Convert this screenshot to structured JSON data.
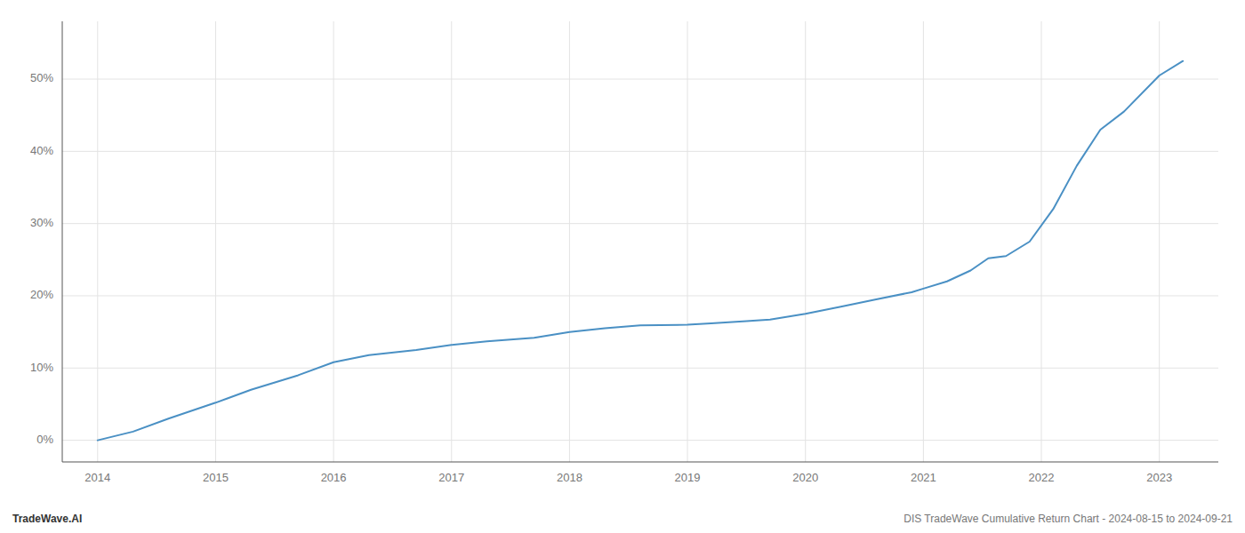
{
  "chart_data": {
    "type": "line",
    "x": [
      2014.0,
      2014.3,
      2014.6,
      2015.0,
      2015.3,
      2015.7,
      2016.0,
      2016.3,
      2016.7,
      2017.0,
      2017.3,
      2017.7,
      2018.0,
      2018.3,
      2018.6,
      2019.0,
      2019.2,
      2019.5,
      2019.7,
      2020.0,
      2020.3,
      2020.6,
      2020.9,
      2021.0,
      2021.2,
      2021.4,
      2021.55,
      2021.7,
      2021.9,
      2022.1,
      2022.3,
      2022.5,
      2022.7,
      2023.0,
      2023.2
    ],
    "values": [
      0.0,
      1.2,
      3.0,
      5.2,
      7.0,
      9.0,
      10.8,
      11.8,
      12.5,
      13.2,
      13.7,
      14.2,
      15.0,
      15.5,
      15.9,
      16.0,
      16.2,
      16.5,
      16.7,
      17.5,
      18.5,
      19.5,
      20.5,
      21.0,
      22.0,
      23.5,
      25.2,
      25.5,
      27.5,
      32.0,
      38.0,
      43.0,
      45.5,
      50.5,
      52.5
    ],
    "color": "#4a90c4",
    "xlim": [
      2013.7,
      2023.5
    ],
    "xticks": [
      2014,
      2015,
      2016,
      2017,
      2018,
      2019,
      2020,
      2021,
      2022,
      2023
    ],
    "ylim": [
      -3,
      58
    ],
    "yticks": [
      {
        "value": 0,
        "label": "0%"
      },
      {
        "value": 10,
        "label": "10%"
      },
      {
        "value": 20,
        "label": "20%"
      },
      {
        "value": 30,
        "label": "30%"
      },
      {
        "value": 40,
        "label": "40%"
      },
      {
        "value": 50,
        "label": "50%"
      }
    ],
    "grid": true,
    "annotations": [
      "TradeWave.AI",
      "DIS TradeWave Cumulative Return Chart - 2024-08-15 to 2024-09-21"
    ]
  }
}
